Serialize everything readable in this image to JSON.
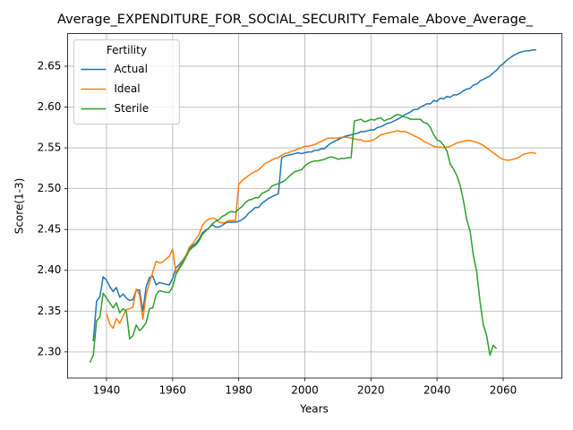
{
  "chart_data": {
    "type": "line",
    "title": "Average_EXPENDITURE_FOR_SOCIAL_SECURITY_Female_Above_Average_",
    "xlabel": "Years",
    "ylabel": "Score(1-3)",
    "legend_title": "Fertility",
    "legend": "upper left",
    "grid": true,
    "xlim": [
      1928.2,
      2077.8
    ],
    "ylim": [
      2.268,
      2.69
    ],
    "xticks": [
      1940,
      1960,
      1980,
      2000,
      2020,
      2040,
      2060
    ],
    "yticks": [
      {
        "value": 2.3,
        "label": "2.30"
      },
      2.35,
      {
        "value": 2.4,
        "label": "2.40"
      },
      2.45,
      {
        "value": 2.5,
        "label": "2.50"
      },
      2.55,
      {
        "value": 2.6,
        "label": "2.60"
      },
      2.65
    ],
    "x": [
      1935,
      1936,
      1937,
      1938,
      1939,
      1940,
      1941,
      1942,
      1943,
      1944,
      1945,
      1946,
      1947,
      1948,
      1949,
      1950,
      1951,
      1952,
      1953,
      1954,
      1955,
      1956,
      1957,
      1958,
      1959,
      1960,
      1961,
      1962,
      1963,
      1964,
      1965,
      1966,
      1967,
      1968,
      1969,
      1970,
      1971,
      1972,
      1973,
      1974,
      1975,
      1976,
      1977,
      1978,
      1979,
      1980,
      1981,
      1982,
      1983,
      1984,
      1985,
      1986,
      1987,
      1988,
      1989,
      1990,
      1991,
      1992,
      1993,
      1994,
      1995,
      1996,
      1997,
      1998,
      1999,
      2000,
      2001,
      2002,
      2003,
      2004,
      2005,
      2006,
      2007,
      2008,
      2009,
      2010,
      2011,
      2012,
      2013,
      2014,
      2015,
      2016,
      2017,
      2018,
      2019,
      2020,
      2021,
      2022,
      2023,
      2024,
      2025,
      2026,
      2027,
      2028,
      2029,
      2030,
      2031,
      2032,
      2033,
      2034,
      2035,
      2036,
      2037,
      2038,
      2039,
      2040,
      2041,
      2042,
      2043,
      2044,
      2045,
      2046,
      2047,
      2048,
      2049,
      2050,
      2051,
      2052,
      2053,
      2054,
      2055,
      2056,
      2057,
      2058,
      2059,
      2060,
      2061,
      2062,
      2063,
      2064,
      2065,
      2066,
      2067,
      2068,
      2069,
      2070
    ],
    "series": [
      {
        "name": "Actual",
        "color": "#1f77b4",
        "values": [
          null,
          2.313,
          2.362,
          2.368,
          2.392,
          2.388,
          2.38,
          2.374,
          2.379,
          2.367,
          2.371,
          2.366,
          2.363,
          2.364,
          2.376,
          2.376,
          2.35,
          2.38,
          2.391,
          2.393,
          2.382,
          2.385,
          2.384,
          2.383,
          2.382,
          2.39,
          2.403,
          2.407,
          2.412,
          2.418,
          2.426,
          2.43,
          2.433,
          2.438,
          2.446,
          2.449,
          2.452,
          2.456,
          2.453,
          2.453,
          2.455,
          2.458,
          2.459,
          2.459,
          2.459,
          2.46,
          2.462,
          2.465,
          2.47,
          2.473,
          2.477,
          2.477,
          2.482,
          2.485,
          2.488,
          2.49,
          2.492,
          2.494,
          2.538,
          2.54,
          2.541,
          2.542,
          2.543,
          2.544,
          2.543,
          2.544,
          2.545,
          2.545,
          2.547,
          2.547,
          2.549,
          2.549,
          2.553,
          2.556,
          2.558,
          2.56,
          2.562,
          2.564,
          2.565,
          2.566,
          2.567,
          2.568,
          2.57,
          2.57,
          2.571,
          2.572,
          2.572,
          2.575,
          2.576,
          2.578,
          2.58,
          2.581,
          2.583,
          2.585,
          2.587,
          2.59,
          2.592,
          2.594,
          2.597,
          2.597,
          2.6,
          2.602,
          2.604,
          2.604,
          2.608,
          2.607,
          2.611,
          2.61,
          2.613,
          2.612,
          2.615,
          2.615,
          2.617,
          2.62,
          2.622,
          2.623,
          2.627,
          2.628,
          2.632,
          2.634,
          2.636,
          2.638,
          2.642,
          2.645,
          2.65,
          2.653,
          2.657,
          2.66,
          2.663,
          2.665,
          2.667,
          2.668,
          2.669,
          2.669,
          2.67,
          2.67
        ]
      },
      {
        "name": "Ideal",
        "color": "#ff7f0e",
        "values": [
          null,
          null,
          null,
          null,
          null,
          2.347,
          2.334,
          2.329,
          2.341,
          2.335,
          2.344,
          2.352,
          2.353,
          2.355,
          2.377,
          2.37,
          2.34,
          2.37,
          2.385,
          2.398,
          2.411,
          2.409,
          2.41,
          2.414,
          2.417,
          2.426,
          2.397,
          2.404,
          2.41,
          2.418,
          2.428,
          2.432,
          2.438,
          2.444,
          2.455,
          2.46,
          2.463,
          2.464,
          2.463,
          2.459,
          2.458,
          2.459,
          2.461,
          2.461,
          2.461,
          2.505,
          2.51,
          2.513,
          2.516,
          2.519,
          2.521,
          2.523,
          2.527,
          2.531,
          2.533,
          2.535,
          2.537,
          2.538,
          2.541,
          2.543,
          2.544,
          2.546,
          2.547,
          2.549,
          2.55,
          2.552,
          2.552,
          2.553,
          2.554,
          2.556,
          2.558,
          2.56,
          2.562,
          2.562,
          2.562,
          2.562,
          2.563,
          2.563,
          2.563,
          2.562,
          2.561,
          2.56,
          2.56,
          2.558,
          2.558,
          2.559,
          2.56,
          2.563,
          2.566,
          2.567,
          2.568,
          2.569,
          2.57,
          2.571,
          2.57,
          2.57,
          2.569,
          2.567,
          2.565,
          2.563,
          2.561,
          2.558,
          2.556,
          2.554,
          2.552,
          2.551,
          2.551,
          2.55,
          2.551,
          2.552,
          2.554,
          2.556,
          2.557,
          2.558,
          2.559,
          2.559,
          2.558,
          2.557,
          2.555,
          2.553,
          2.55,
          2.547,
          2.544,
          2.541,
          2.538,
          2.536,
          2.535,
          2.535,
          2.536,
          2.537,
          2.539,
          2.542,
          2.543,
          2.544,
          2.544,
          2.543
        ]
      },
      {
        "name": "Sterile",
        "color": "#2ca02c",
        "values": [
          2.287,
          2.296,
          2.338,
          2.343,
          2.372,
          2.366,
          2.36,
          2.354,
          2.36,
          2.348,
          2.353,
          2.35,
          2.316,
          2.32,
          2.333,
          2.326,
          2.33,
          2.336,
          2.353,
          2.354,
          2.37,
          2.375,
          2.374,
          2.373,
          2.373,
          2.38,
          2.395,
          2.402,
          2.408,
          2.416,
          2.424,
          2.428,
          2.431,
          2.436,
          2.444,
          2.448,
          2.452,
          2.457,
          2.46,
          2.462,
          2.466,
          2.468,
          2.471,
          2.472,
          2.471,
          2.475,
          2.478,
          2.483,
          2.486,
          2.487,
          2.489,
          2.489,
          2.494,
          2.496,
          2.498,
          2.503,
          2.505,
          2.506,
          2.508,
          2.51,
          2.514,
          2.518,
          2.521,
          2.522,
          2.523,
          2.528,
          2.531,
          2.533,
          2.534,
          2.534,
          2.535,
          2.536,
          2.538,
          2.539,
          2.538,
          2.536,
          2.537,
          2.537,
          2.538,
          2.538,
          2.583,
          2.584,
          2.585,
          2.582,
          2.583,
          2.585,
          2.584,
          2.586,
          2.587,
          2.583,
          2.585,
          2.586,
          2.589,
          2.591,
          2.59,
          2.588,
          2.587,
          2.585,
          2.585,
          2.585,
          2.585,
          2.581,
          2.58,
          2.575,
          2.566,
          2.56,
          2.558,
          2.553,
          2.546,
          2.53,
          2.524,
          2.516,
          2.504,
          2.485,
          2.462,
          2.448,
          2.418,
          2.398,
          2.362,
          2.333,
          2.32,
          2.296,
          2.308,
          2.304,
          null,
          null,
          null,
          null,
          null,
          null,
          null,
          null,
          null,
          null,
          null,
          null
        ]
      }
    ]
  }
}
